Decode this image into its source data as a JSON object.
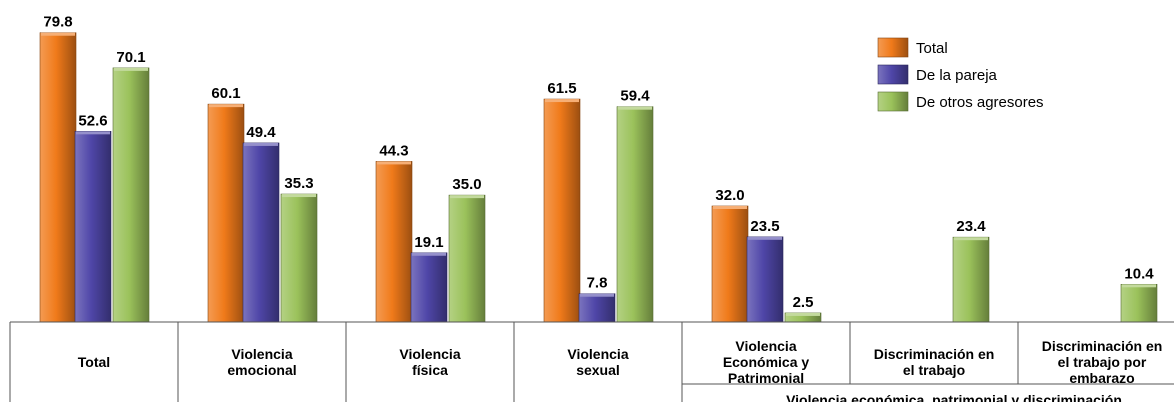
{
  "chart_data": {
    "type": "bar",
    "categories": [
      "Total",
      "Violencia emocional",
      "Violencia física",
      "Violencia sexual",
      "Violencia Económica y Patrimonial",
      "Discriminación en el trabajo",
      "Discriminación en el trabajo por embarazo"
    ],
    "category_lines": [
      [
        "Total"
      ],
      [
        "Violencia",
        "emocional"
      ],
      [
        "Violencia",
        "física"
      ],
      [
        "Violencia",
        "sexual"
      ],
      [
        "Violencia",
        "Económica y",
        "Patrimonial"
      ],
      [
        "Discriminación en",
        "el trabajo"
      ],
      [
        "Discriminación en",
        "el trabajo por",
        "embarazo"
      ]
    ],
    "group_label": "Violencia económica, patrimonial y discriminación",
    "series": [
      {
        "name": "Total",
        "values": [
          79.8,
          60.1,
          44.3,
          61.5,
          32.0,
          null,
          null
        ],
        "color": "#F07A1A"
      },
      {
        "name": "De la pareja",
        "values": [
          52.6,
          49.4,
          19.1,
          7.8,
          23.5,
          null,
          null
        ],
        "color": "#4F46A8"
      },
      {
        "name": "De otros agresores",
        "values": [
          70.1,
          35.3,
          35.0,
          59.4,
          2.5,
          23.4,
          10.4
        ],
        "color": "#9BC25B"
      }
    ],
    "value_labels": [
      [
        "79.8",
        "60.1",
        "44.3",
        "61.5",
        "32.0",
        "",
        ""
      ],
      [
        "52.6",
        "49.4",
        "19.1",
        "7.8",
        "23.5",
        "",
        ""
      ],
      [
        "70.1",
        "35.3",
        "35.0",
        "59.4",
        "2.5",
        "23.4",
        "10.4"
      ]
    ],
    "ylim": [
      0,
      80
    ],
    "legend_position": "top-right",
    "grid": false
  }
}
